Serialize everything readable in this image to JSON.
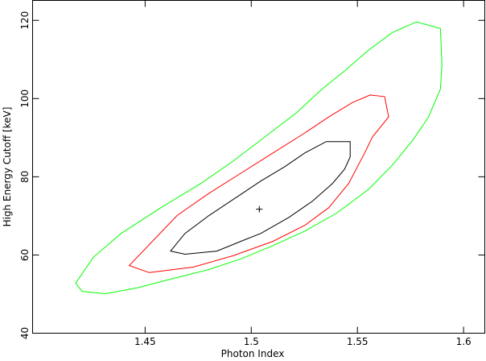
{
  "chart_data": {
    "type": "contour",
    "xlabel": "Photon Index",
    "ylabel": "High Energy Cutoff [keV]",
    "xlim": [
      1.397,
      1.61
    ],
    "ylim": [
      40,
      125.1
    ],
    "xticks": [
      1.45,
      1.5,
      1.55,
      1.6
    ],
    "yticks": [
      40,
      60,
      80,
      100,
      120
    ],
    "series": [
      {
        "color": "#00ff00",
        "x": [
          1.4173,
          1.4203,
          1.4312,
          1.4462,
          1.4632,
          1.4801,
          1.4951,
          1.5102,
          1.5252,
          1.5402,
          1.5553,
          1.5665,
          1.5759,
          1.5835,
          1.5891,
          1.5898,
          1.5891,
          1.5778,
          1.5665,
          1.5553,
          1.544,
          1.5327,
          1.5214,
          1.5064,
          1.4914,
          1.4763,
          1.4575,
          1.4387,
          1.4256
        ],
        "y": [
          52.8,
          50.7,
          50.1,
          51.6,
          54.0,
          56.3,
          59.0,
          62.4,
          66.1,
          70.7,
          76.8,
          83.0,
          89.2,
          95.3,
          102.5,
          108.7,
          117.9,
          119.6,
          116.9,
          112.4,
          107.1,
          102.1,
          96.4,
          90.2,
          84.0,
          78.3,
          72.1,
          65.5,
          59.4
        ]
      },
      {
        "color": "#ff0000",
        "x": [
          1.4425,
          1.4519,
          1.4726,
          1.4914,
          1.5102,
          1.5252,
          1.5365,
          1.5459,
          1.5534,
          1.5571,
          1.5647,
          1.5628,
          1.556,
          1.5477,
          1.5365,
          1.5252,
          1.5102,
          1.4951,
          1.4801,
          1.4651
        ],
        "y": [
          57.3,
          55.5,
          56.9,
          59.8,
          63.5,
          67.6,
          72.1,
          78.3,
          86.1,
          90.2,
          95.3,
          100.5,
          100.9,
          99.0,
          95.3,
          91.2,
          86.1,
          80.9,
          75.8,
          70.1
        ]
      },
      {
        "color": "#000000",
        "x": [
          1.462,
          1.4688,
          1.4838,
          1.4951,
          1.5045,
          1.5177,
          1.5289,
          1.5383,
          1.544,
          1.5466,
          1.5466,
          1.5353,
          1.5252,
          1.5158,
          1.5045,
          1.4932,
          1.4801,
          1.4688
        ],
        "y": [
          61.0,
          60.2,
          61.0,
          63.5,
          65.5,
          69.6,
          73.8,
          78.3,
          82.0,
          85.1,
          89.0,
          89.0,
          86.1,
          82.6,
          78.9,
          74.8,
          70.1,
          65.5
        ]
      }
    ],
    "best_fit": {
      "x": 1.5038,
      "y": 71.7
    }
  }
}
